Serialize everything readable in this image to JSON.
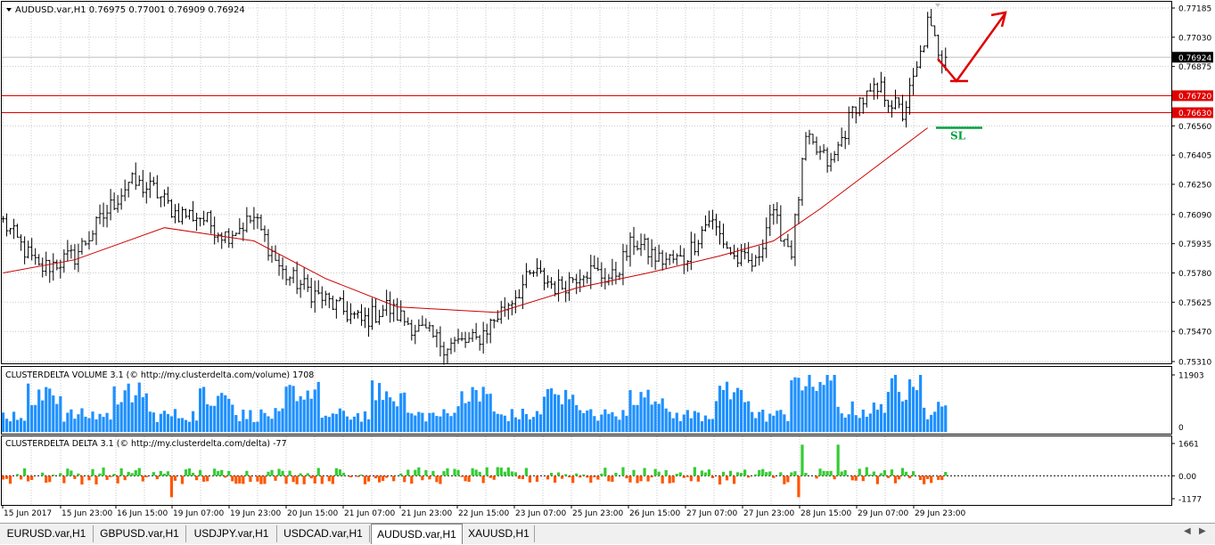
{
  "main_header": "AUDUSD.var,H1  0.76975 0.77001 0.76909 0.76924",
  "volume_header": "CLUSTERDELTA VOLUME 3.1 (© http://my.clusterdelta.com/volume) 1708",
  "delta_header": "CLUSTERDELTA DELTA 3.1 (© http://my.clusterdelta.com/delta) -77",
  "sl_label": "SL",
  "colors": {
    "ma": "#cc0000",
    "level": "#e00000",
    "volume": "#1e90ff",
    "delta_pos": "#33cc33",
    "delta_neg": "#ff5500",
    "sl": "#00a040",
    "arrow": "#e00000"
  },
  "chart_data": [
    {
      "type": "candlestick",
      "symbol": "AUDUSD.var",
      "timeframe": "H1",
      "price_ticks": [
        "0.77185",
        "0.77030",
        "0.76875",
        "0.76560",
        "0.76405",
        "0.76250",
        "0.76090",
        "0.75935",
        "0.75780",
        "0.75625",
        "0.75470",
        "0.75310"
      ],
      "price_range": [
        0.7531,
        0.77185
      ],
      "current_price": "0.76924",
      "levels": [
        "0.76720",
        "0.76630"
      ],
      "time_labels": [
        "15 Jun 2017",
        "15 Jun 23:00",
        "16 Jun 15:00",
        "19 Jun 07:00",
        "19 Jun 23:00",
        "20 Jun 15:00",
        "21 Jun 07:00",
        "21 Jun 23:00",
        "22 Jun 15:00",
        "23 Jun 07:00",
        "25 Jun 23:00",
        "26 Jun 15:00",
        "27 Jun 07:00",
        "27 Jun 23:00",
        "28 Jun 15:00",
        "29 Jun 07:00",
        "29 Jun 23:00"
      ],
      "anchors": [
        [
          0,
          0.7605
        ],
        [
          10,
          0.758
        ],
        [
          20,
          0.7587
        ],
        [
          28,
          0.7608
        ],
        [
          35,
          0.7626
        ],
        [
          42,
          0.7622
        ],
        [
          48,
          0.761
        ],
        [
          55,
          0.7608
        ],
        [
          62,
          0.7598
        ],
        [
          70,
          0.7607
        ],
        [
          78,
          0.7578
        ],
        [
          86,
          0.7568
        ],
        [
          93,
          0.756
        ],
        [
          100,
          0.7552
        ],
        [
          107,
          0.756
        ],
        [
          115,
          0.7549
        ],
        [
          123,
          0.754
        ],
        [
          132,
          0.7542
        ],
        [
          140,
          0.756
        ],
        [
          148,
          0.7578
        ],
        [
          155,
          0.757
        ],
        [
          162,
          0.758
        ],
        [
          170,
          0.7575
        ],
        [
          176,
          0.7595
        ],
        [
          183,
          0.7585
        ],
        [
          190,
          0.7585
        ],
        [
          197,
          0.7607
        ],
        [
          204,
          0.7586
        ],
        [
          210,
          0.7582
        ],
        [
          214,
          0.761
        ],
        [
          220,
          0.759
        ],
        [
          224,
          0.7648
        ],
        [
          231,
          0.7635
        ],
        [
          238,
          0.7668
        ],
        [
          245,
          0.7675
        ],
        [
          251,
          0.7662
        ],
        [
          255,
          0.7685
        ],
        [
          258,
          0.771
        ],
        [
          262,
          0.7692
        ]
      ],
      "moving_average": [
        [
          0,
          0.7578
        ],
        [
          20,
          0.7585
        ],
        [
          45,
          0.7602
        ],
        [
          70,
          0.7595
        ],
        [
          90,
          0.7575
        ],
        [
          110,
          0.756
        ],
        [
          138,
          0.7557
        ],
        [
          160,
          0.757
        ],
        [
          180,
          0.7578
        ],
        [
          200,
          0.7587
        ],
        [
          215,
          0.7595
        ],
        [
          228,
          0.7612
        ],
        [
          242,
          0.7632
        ],
        [
          258,
          0.7655
        ]
      ],
      "stop_loss": "0.76550"
    },
    {
      "type": "bar",
      "name": "CLUSTERDELTA VOLUME 3.1",
      "y_ticks": [
        "11903",
        "0"
      ],
      "y_range": [
        0,
        11903
      ]
    },
    {
      "type": "bar",
      "name": "CLUSTERDELTA DELTA 3.1",
      "y_ticks": [
        "1661",
        "0.00",
        "-1177"
      ],
      "y_range": [
        -1177,
        1661
      ]
    }
  ],
  "tabs": [
    "EURUSD.var,H1",
    "GBPUSD.var,H1",
    "USDJPY.var,H1",
    "USDCAD.var,H1",
    "AUDUSD.var,H1",
    "XAUUSD,H1"
  ],
  "active_tab": "AUDUSD.var,H1"
}
